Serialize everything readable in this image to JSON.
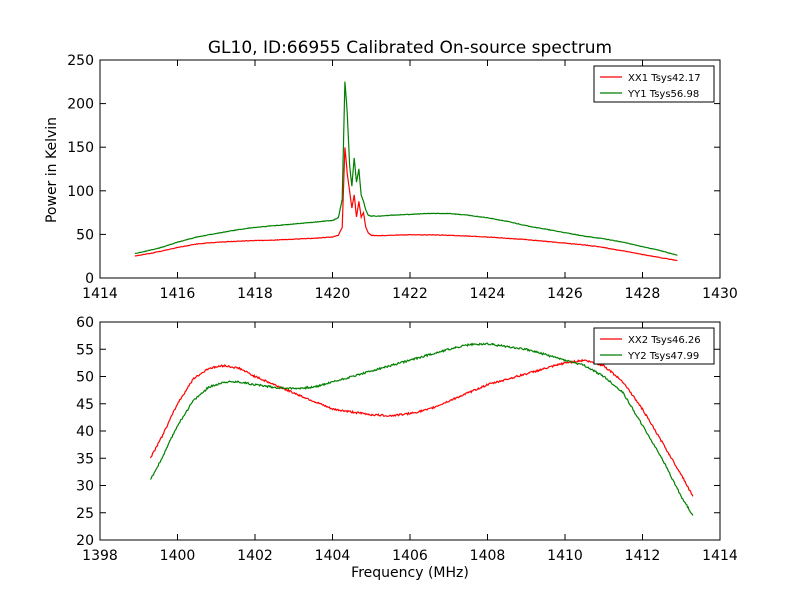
{
  "chart_data": [
    {
      "type": "line",
      "title": "GL10, ID:66955 Calibrated On-source spectrum",
      "xlabel": "",
      "ylabel": "Power in Kelvin",
      "xlim": [
        1414,
        1430
      ],
      "ylim": [
        0,
        250
      ],
      "xticks": [
        1414,
        1416,
        1418,
        1420,
        1422,
        1424,
        1426,
        1428,
        1430
      ],
      "yticks": [
        0,
        50,
        100,
        150,
        200,
        250
      ],
      "grid": false,
      "legend": "top-right",
      "series": [
        {
          "name": "XX1 Tsys42.17",
          "color": "#ff0000",
          "x": [
            1414.9,
            1415.5,
            1416,
            1416.5,
            1417,
            1417.5,
            1418,
            1418.5,
            1419,
            1419.5,
            1420,
            1420.15,
            1420.25,
            1420.32,
            1420.38,
            1420.44,
            1420.5,
            1420.56,
            1420.62,
            1420.68,
            1420.74,
            1420.8,
            1420.86,
            1420.92,
            1421,
            1421.2,
            1421.5,
            1422,
            1422.5,
            1423,
            1423.5,
            1424,
            1424.5,
            1425,
            1425.5,
            1426,
            1426.5,
            1427,
            1427.5,
            1428,
            1428.5,
            1428.9
          ],
          "y": [
            25,
            30,
            35,
            39,
            41,
            42,
            43,
            43.5,
            44.5,
            45.5,
            47,
            49,
            58,
            150,
            120,
            100,
            80,
            95,
            70,
            88,
            70,
            75,
            58,
            52,
            49,
            48.5,
            49,
            49.5,
            49.5,
            49,
            48,
            47,
            45.5,
            44,
            42,
            40,
            38,
            35,
            31,
            27,
            23,
            20
          ]
        },
        {
          "name": "YY1 Tsys56.98",
          "color": "#008000",
          "x": [
            1414.9,
            1415.5,
            1416,
            1416.5,
            1417,
            1417.5,
            1418,
            1418.5,
            1419,
            1419.5,
            1420,
            1420.15,
            1420.25,
            1420.32,
            1420.38,
            1420.44,
            1420.5,
            1420.56,
            1420.62,
            1420.68,
            1420.74,
            1420.8,
            1420.86,
            1420.92,
            1421,
            1421.2,
            1421.5,
            1422,
            1422.5,
            1423,
            1423.5,
            1424,
            1424.5,
            1425,
            1425.5,
            1426,
            1426.5,
            1427,
            1427.5,
            1428,
            1428.5,
            1428.9
          ],
          "y": [
            28,
            34,
            41,
            47,
            51,
            55,
            58,
            60,
            62,
            64,
            66,
            69,
            90,
            225,
            190,
            130,
            105,
            138,
            110,
            125,
            95,
            88,
            78,
            72,
            71,
            71,
            72,
            73,
            74,
            74,
            72,
            69,
            65,
            60,
            56,
            52,
            48,
            45,
            41,
            36,
            31,
            26
          ]
        }
      ]
    },
    {
      "type": "line",
      "title": "",
      "xlabel": "Frequency (MHz)",
      "ylabel": "",
      "xlim": [
        1398,
        1414
      ],
      "ylim": [
        20,
        60
      ],
      "xticks": [
        1398,
        1400,
        1402,
        1404,
        1406,
        1408,
        1410,
        1412,
        1414
      ],
      "yticks": [
        20,
        25,
        30,
        35,
        40,
        45,
        50,
        55,
        60
      ],
      "grid": false,
      "legend": "top-right",
      "series": [
        {
          "name": "XX2 Tsys46.26",
          "color": "#ff0000",
          "x": [
            1399.3,
            1399.6,
            1400,
            1400.4,
            1400.8,
            1401.2,
            1401.6,
            1402,
            1402.5,
            1403,
            1403.5,
            1404,
            1404.5,
            1405,
            1405.5,
            1406,
            1406.5,
            1407,
            1407.5,
            1408,
            1408.5,
            1409,
            1409.5,
            1410,
            1410.5,
            1411,
            1411.5,
            1412,
            1412.5,
            1413,
            1413.3
          ],
          "y": [
            35,
            39,
            45,
            49.5,
            51.5,
            52,
            51.5,
            50,
            48.5,
            47,
            45.5,
            44,
            43.5,
            43,
            42.8,
            43.2,
            44,
            45.5,
            47,
            48.5,
            49.5,
            50.5,
            51.5,
            52.5,
            53,
            52,
            49,
            44,
            38,
            32,
            28
          ]
        },
        {
          "name": "YY2 Tsys47.99",
          "color": "#008000",
          "x": [
            1399.3,
            1399.6,
            1400,
            1400.4,
            1400.8,
            1401.2,
            1401.6,
            1402,
            1402.5,
            1403,
            1403.5,
            1404,
            1404.5,
            1405,
            1405.5,
            1406,
            1406.5,
            1407,
            1407.5,
            1408,
            1408.5,
            1409,
            1409.5,
            1410,
            1410.5,
            1411,
            1411.5,
            1412,
            1412.5,
            1413,
            1413.3
          ],
          "y": [
            31,
            35,
            41,
            45.5,
            48,
            49,
            49,
            48.5,
            48,
            47.8,
            48,
            49,
            50,
            51,
            52,
            53,
            54,
            55,
            55.8,
            56,
            55.5,
            55,
            54,
            53,
            52,
            50,
            47,
            41,
            35,
            28,
            24.5
          ]
        }
      ]
    }
  ]
}
